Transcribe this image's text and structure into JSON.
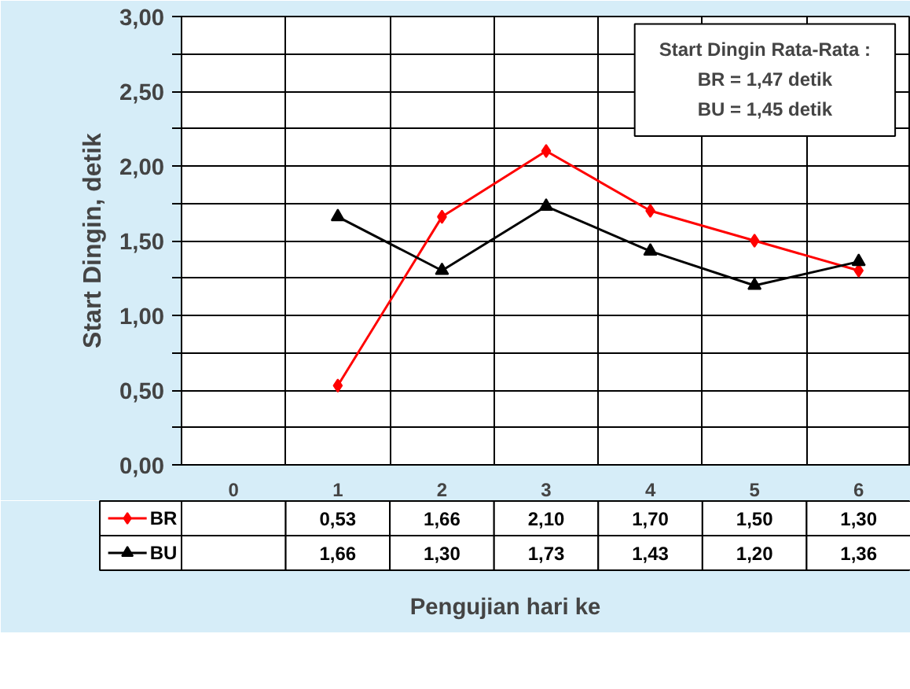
{
  "chart_data": {
    "type": "line",
    "xlabel": "Pengujian hari ke",
    "ylabel": "Start Dingin, detik",
    "categories": [
      "0",
      "1",
      "2",
      "3",
      "4",
      "5",
      "6"
    ],
    "series": [
      {
        "name": "BR",
        "color": "#ff0000",
        "marker": "diamond",
        "values": [
          null,
          0.53,
          1.66,
          2.1,
          1.7,
          1.5,
          1.3
        ],
        "value_labels": [
          null,
          "0,53",
          "1,66",
          "2,10",
          "1,70",
          "1,50",
          "1,30"
        ]
      },
      {
        "name": "BU",
        "color": "#000000",
        "marker": "triangle",
        "values": [
          null,
          1.66,
          1.3,
          1.73,
          1.43,
          1.2,
          1.36
        ],
        "value_labels": [
          null,
          "1,66",
          "1,30",
          "1,73",
          "1,43",
          "1,20",
          "1,36"
        ]
      }
    ],
    "ylim": [
      0,
      3
    ],
    "yticks": [
      {
        "value": 0,
        "label": "0,00"
      },
      {
        "value": 0.25,
        "label": null
      },
      {
        "value": 0.5,
        "label": "0,50"
      },
      {
        "value": 0.75,
        "label": null
      },
      {
        "value": 1,
        "label": "1,00"
      },
      {
        "value": 1.25,
        "label": null
      },
      {
        "value": 1.5,
        "label": "1,50"
      },
      {
        "value": 1.75,
        "label": null
      },
      {
        "value": 2,
        "label": "2,00"
      },
      {
        "value": 2.25,
        "label": null
      },
      {
        "value": 2.5,
        "label": "2,50"
      },
      {
        "value": 2.75,
        "label": null
      },
      {
        "value": 3,
        "label": "3,00"
      }
    ],
    "grid": true,
    "legend": "bottom",
    "line_style": "solid",
    "annotations": [
      "Start Dingin Rata-Rata :",
      "BR = 1,47 detik",
      "BU = 1,45 detik"
    ]
  }
}
